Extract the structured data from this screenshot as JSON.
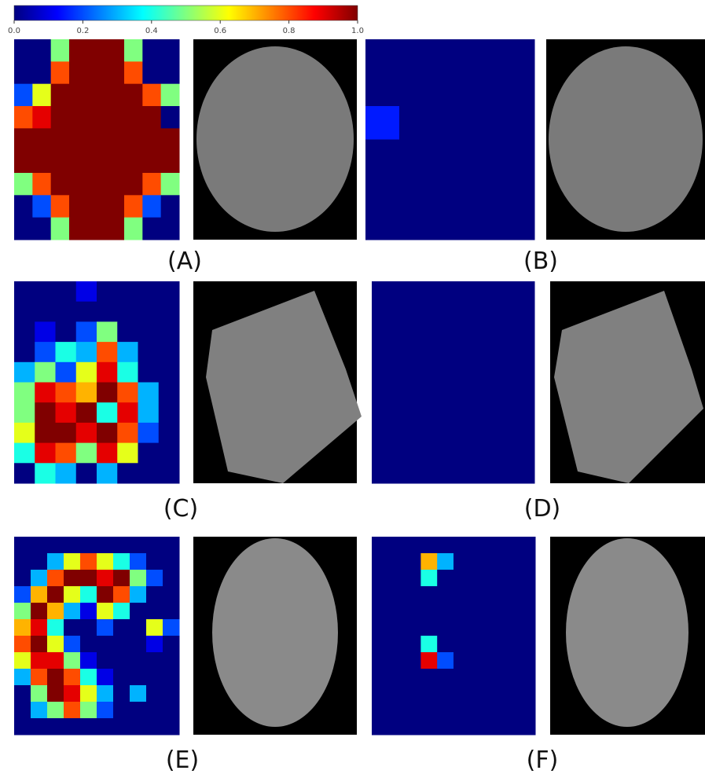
{
  "colorbar": {
    "ticks": [
      {
        "value": 0,
        "label": "0.0"
      },
      {
        "value": 0.2,
        "label": "0.2"
      },
      {
        "value": 0.4,
        "label": "0.4"
      },
      {
        "value": 0.6,
        "label": "0.6"
      },
      {
        "value": 0.8,
        "label": "0.8"
      },
      {
        "value": 1,
        "label": "1.0"
      }
    ]
  },
  "panels": [
    {
      "label": "(A)",
      "heatmap": [
        [
          0,
          0,
          0.5,
          1,
          1,
          1,
          0.5,
          0,
          0
        ],
        [
          0,
          0,
          0.8,
          1,
          1,
          1,
          0.8,
          0,
          0
        ],
        [
          0.2,
          0.6,
          1,
          1,
          1,
          1,
          1,
          0.8,
          0.5
        ],
        [
          0.8,
          0.9,
          1,
          1,
          1,
          1,
          1,
          1,
          0
        ],
        [
          1,
          1,
          1,
          1,
          1,
          1,
          1,
          1,
          1
        ],
        [
          1,
          1,
          1,
          1,
          1,
          1,
          1,
          1,
          1
        ],
        [
          0.5,
          0.8,
          1,
          1,
          1,
          1,
          1,
          0.8,
          0.5
        ],
        [
          0,
          0.2,
          0.8,
          1,
          1,
          1,
          0.8,
          0.2,
          0
        ],
        [
          0,
          0,
          0.5,
          1,
          1,
          1,
          0.5,
          0,
          0
        ]
      ]
    },
    {
      "label": "(B)",
      "heatmap": [
        [
          0,
          0,
          0,
          0,
          0
        ],
        [
          0,
          0,
          0,
          0,
          0
        ],
        [
          0.15,
          0,
          0,
          0,
          0
        ],
        [
          0,
          0,
          0,
          0,
          0
        ],
        [
          0,
          0,
          0,
          0,
          0
        ],
        [
          0,
          0,
          0,
          0,
          0
        ]
      ]
    },
    {
      "label": "(C)",
      "heatmap": [
        [
          0,
          0,
          0,
          0.1,
          0,
          0,
          0,
          0
        ],
        [
          0,
          0,
          0,
          0,
          0,
          0,
          0,
          0
        ],
        [
          0,
          0.1,
          0,
          0.2,
          0.5,
          0,
          0,
          0
        ],
        [
          0,
          0.2,
          0.4,
          0.3,
          0.8,
          0.3,
          0,
          0
        ],
        [
          0.3,
          0.5,
          0.2,
          0.6,
          0.9,
          0.4,
          0,
          0
        ],
        [
          0.5,
          0.9,
          0.8,
          0.7,
          1,
          0.8,
          0.3,
          0
        ],
        [
          0.5,
          1,
          0.9,
          1,
          0.4,
          0.9,
          0.3,
          0
        ],
        [
          0.6,
          1,
          1,
          0.9,
          1,
          0.8,
          0.2,
          0
        ],
        [
          0.4,
          0.9,
          0.8,
          0.5,
          0.9,
          0.6,
          0,
          0
        ],
        [
          0,
          0.4,
          0.3,
          0,
          0.3,
          0,
          0,
          0
        ]
      ]
    },
    {
      "label": "(D)",
      "heatmap": [
        [
          0
        ]
      ]
    },
    {
      "label": "(E)",
      "heatmap": [
        [
          0,
          0,
          0,
          0,
          0,
          0,
          0,
          0,
          0,
          0
        ],
        [
          0,
          0,
          0.3,
          0.6,
          0.8,
          0.6,
          0.4,
          0.2,
          0,
          0
        ],
        [
          0,
          0.3,
          0.8,
          1,
          1,
          0.9,
          1,
          0.5,
          0.2,
          0
        ],
        [
          0.2,
          0.7,
          1,
          0.6,
          0.4,
          1,
          0.8,
          0.3,
          0,
          0
        ],
        [
          0.5,
          1,
          0.7,
          0.3,
          0.1,
          0.6,
          0.4,
          0,
          0,
          0
        ],
        [
          0.7,
          0.9,
          0.4,
          0,
          0,
          0.2,
          0,
          0,
          0.6,
          0.2
        ],
        [
          0.8,
          1,
          0.6,
          0.2,
          0,
          0,
          0,
          0,
          0.1,
          0
        ],
        [
          0.6,
          0.9,
          0.9,
          0.5,
          0.1,
          0,
          0,
          0,
          0,
          0
        ],
        [
          0.3,
          0.8,
          1,
          0.8,
          0.4,
          0.1,
          0,
          0,
          0,
          0
        ],
        [
          0,
          0.5,
          1,
          0.9,
          0.6,
          0.3,
          0,
          0.3,
          0,
          0
        ],
        [
          0,
          0.3,
          0.5,
          0.8,
          0.5,
          0.2,
          0,
          0,
          0,
          0
        ],
        [
          0,
          0,
          0,
          0,
          0,
          0,
          0,
          0,
          0,
          0
        ]
      ]
    },
    {
      "label": "(F)",
      "heatmap": [
        [
          0,
          0,
          0,
          0,
          0,
          0,
          0,
          0,
          0,
          0
        ],
        [
          0,
          0,
          0,
          0.7,
          0.3,
          0,
          0,
          0,
          0,
          0
        ],
        [
          0,
          0,
          0,
          0.4,
          0,
          0,
          0,
          0,
          0,
          0
        ],
        [
          0,
          0,
          0,
          0,
          0,
          0,
          0,
          0,
          0,
          0
        ],
        [
          0,
          0,
          0,
          0,
          0,
          0,
          0,
          0,
          0,
          0
        ],
        [
          0,
          0,
          0,
          0,
          0,
          0,
          0,
          0,
          0,
          0
        ],
        [
          0,
          0,
          0,
          0.4,
          0,
          0,
          0,
          0,
          0,
          0
        ],
        [
          0,
          0,
          0,
          0.9,
          0.2,
          0,
          0,
          0,
          0,
          0
        ],
        [
          0,
          0,
          0,
          0,
          0,
          0,
          0,
          0,
          0,
          0
        ],
        [
          0,
          0,
          0,
          0,
          0,
          0,
          0,
          0,
          0,
          0
        ],
        [
          0,
          0,
          0,
          0,
          0,
          0,
          0,
          0,
          0,
          0
        ],
        [
          0,
          0,
          0,
          0,
          0,
          0,
          0,
          0,
          0,
          0
        ]
      ]
    }
  ]
}
